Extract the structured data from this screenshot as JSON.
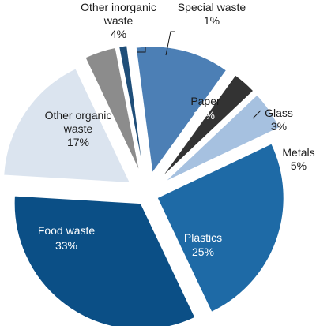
{
  "chart_data": {
    "type": "pie",
    "style": "exploded",
    "slices": [
      {
        "label": "Special waste",
        "value": 1,
        "display": "1%",
        "color": "#1f4e79"
      },
      {
        "label": "Paper",
        "value": 12,
        "display": "12%",
        "color": "#4c7fb5"
      },
      {
        "label": "Glass",
        "value": 3,
        "display": "3%",
        "color": "#333333"
      },
      {
        "label": "Metals",
        "value": 5,
        "display": "5%",
        "color": "#a6c1e0"
      },
      {
        "label": "Plastics",
        "value": 25,
        "display": "25%",
        "color": "#1e6aa6"
      },
      {
        "label": "Food waste",
        "value": 33,
        "display": "33%",
        "color": "#0b4f86"
      },
      {
        "label": "Other organic waste",
        "value": 17,
        "display": "17%",
        "color": "#dbe4ef"
      },
      {
        "label": "Other inorganic waste",
        "value": 4,
        "display": "4%",
        "color": "#8c8c8c"
      }
    ]
  },
  "labels": {
    "special_waste": "Special waste",
    "special_pct": "1%",
    "paper": "Paper",
    "paper_pct": "12%",
    "glass": "Glass",
    "glass_pct": "3%",
    "metals": "Metals",
    "metals_pct": "5%",
    "plastics": "Plastics",
    "plastics_pct": "25%",
    "food": "Food waste",
    "food_pct": "33%",
    "organic_line1": "Other organic",
    "organic_line2": "waste",
    "organic_pct": "17%",
    "inorganic_line1": "Other inorganic",
    "inorganic_line2": "waste",
    "inorganic_pct": "4%"
  }
}
